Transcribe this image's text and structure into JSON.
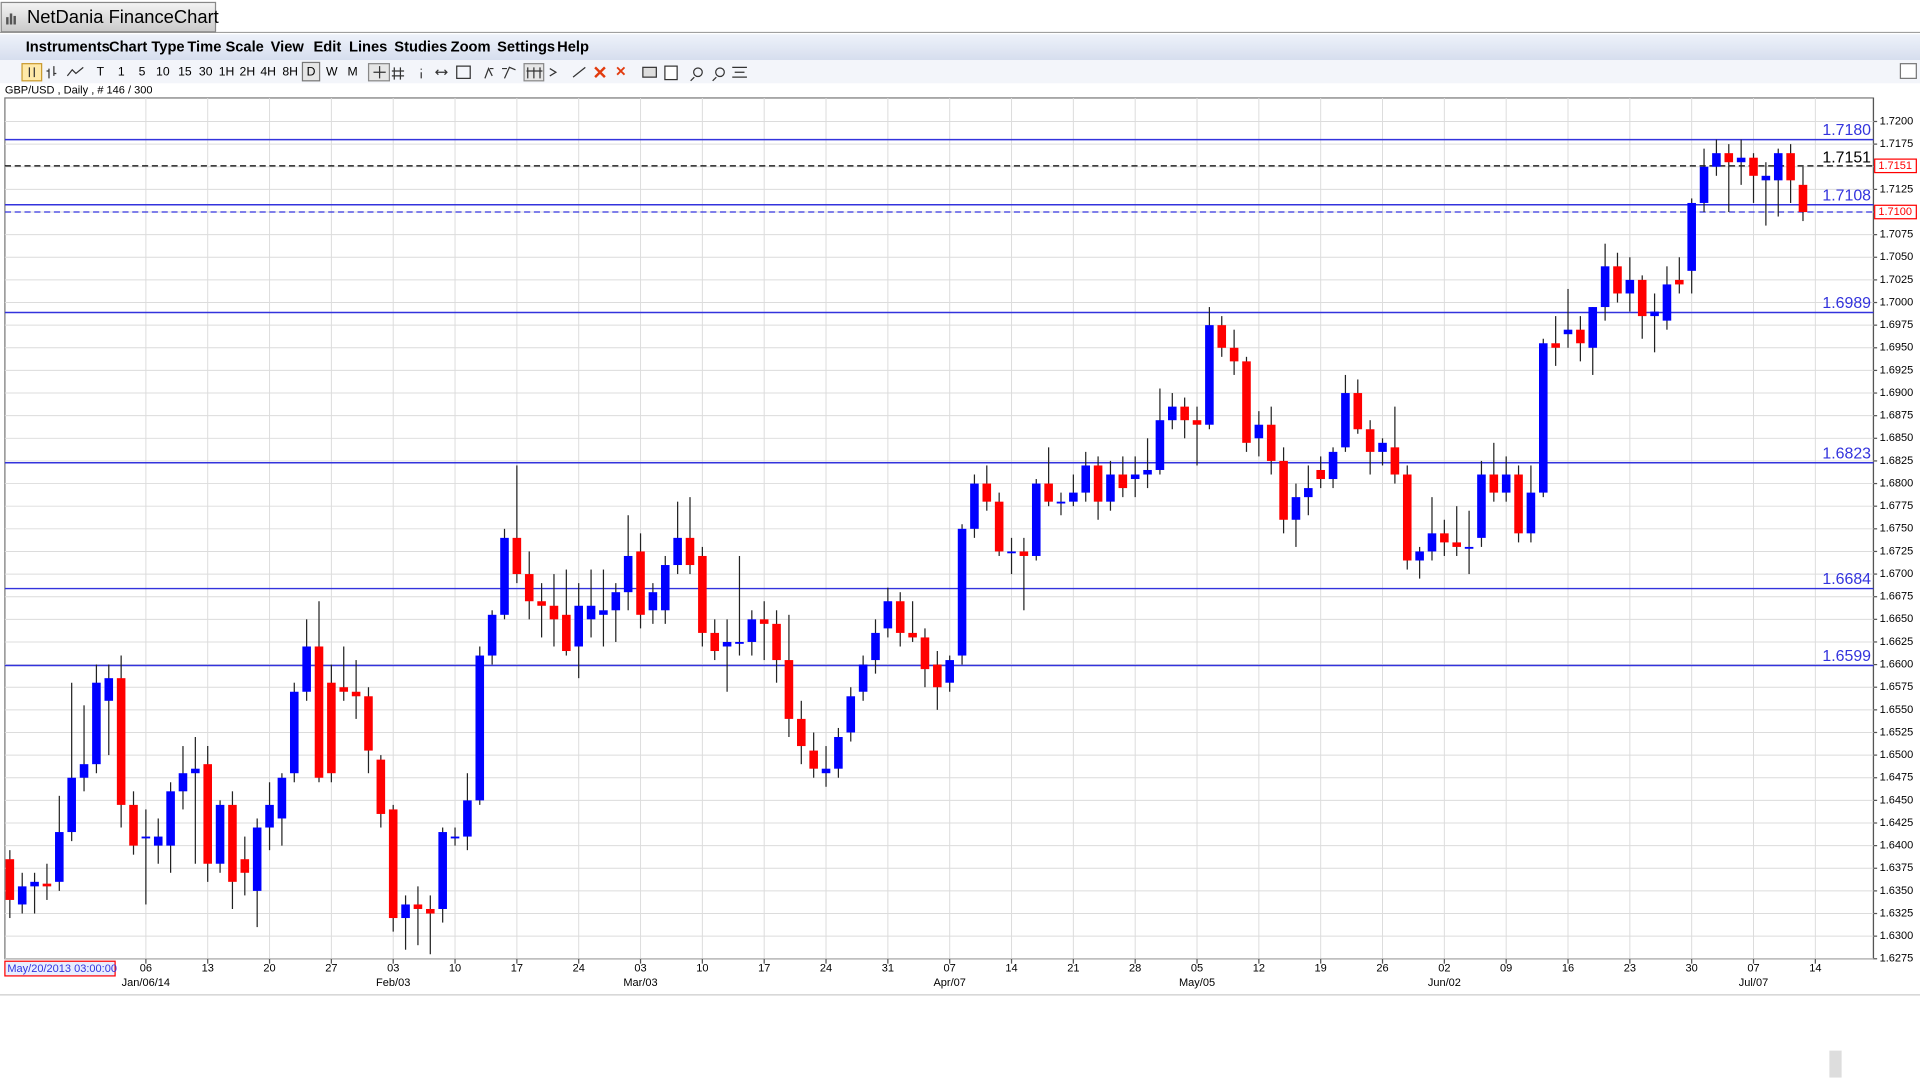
{
  "window": {
    "title": "NetDania FinanceChart",
    "menu": [
      "Instruments",
      "Chart Type",
      "Time Scale",
      "View",
      "Edit",
      "Lines",
      "Studies",
      "Zoom",
      "Settings",
      "Help"
    ],
    "timescales": [
      "T",
      "1",
      "5",
      "10",
      "15",
      "30",
      "1H",
      "2H",
      "4H",
      "8H",
      "D",
      "W",
      "M"
    ]
  },
  "chart_data": {
    "type": "candlestick",
    "title": "GBP/USD , Daily , # 146 / 300",
    "cursor_label": "May/20/2013 03:00:00",
    "up_color": "#0000ff",
    "down_color": "#ff0000",
    "wick_color": "#222222",
    "grid": true,
    "xlim": [
      -0.4,
      150.7
    ],
    "ylim": [
      1.6275,
      1.7226
    ],
    "xticks": [
      {
        "value": 11,
        "label": "06"
      },
      {
        "value": 16,
        "label": "13"
      },
      {
        "value": 21,
        "label": "20"
      },
      {
        "value": 26,
        "label": "27"
      },
      {
        "value": 31,
        "label": "03"
      },
      {
        "value": 36,
        "label": "10"
      },
      {
        "value": 41,
        "label": "17"
      },
      {
        "value": 46,
        "label": "24"
      },
      {
        "value": 51,
        "label": "03"
      },
      {
        "value": 56,
        "label": "10"
      },
      {
        "value": 61,
        "label": "17"
      },
      {
        "value": 66,
        "label": "24"
      },
      {
        "value": 71,
        "label": "31"
      },
      {
        "value": 76,
        "label": "07"
      },
      {
        "value": 81,
        "label": "14"
      },
      {
        "value": 86,
        "label": "21"
      },
      {
        "value": 91,
        "label": "28"
      },
      {
        "value": 96,
        "label": "05"
      },
      {
        "value": 101,
        "label": "12"
      },
      {
        "value": 106,
        "label": "19"
      },
      {
        "value": 111,
        "label": "26"
      },
      {
        "value": 116,
        "label": "02"
      },
      {
        "value": 121,
        "label": "09"
      },
      {
        "value": 126,
        "label": "16"
      },
      {
        "value": 131,
        "label": "23"
      },
      {
        "value": 136,
        "label": "30"
      },
      {
        "value": 141,
        "label": "07"
      },
      {
        "value": 146,
        "label": "14"
      }
    ],
    "month_labels": [
      {
        "value": 11,
        "label": "Jan/06/14"
      },
      {
        "value": 31,
        "label": "Feb/03"
      },
      {
        "value": 51,
        "label": "Mar/03"
      },
      {
        "value": 76,
        "label": "Apr/07"
      },
      {
        "value": 96,
        "label": "May/05"
      },
      {
        "value": 116,
        "label": "Jun/02"
      },
      {
        "value": 141,
        "label": "Jul/07"
      }
    ],
    "yticks": [
      1.6275,
      {
        "value": 1.63,
        "label": "1.6300"
      },
      1.6325,
      {
        "value": 1.635,
        "label": "1.6350"
      },
      1.6375,
      {
        "value": 1.64,
        "label": "1.6400"
      },
      1.6425,
      {
        "value": 1.645,
        "label": "1.6450"
      },
      1.6475,
      {
        "value": 1.65,
        "label": "1.6500"
      },
      1.6525,
      {
        "value": 1.655,
        "label": "1.6550"
      },
      1.6575,
      {
        "value": 1.66,
        "label": "1.6600"
      },
      1.6625,
      {
        "value": 1.665,
        "label": "1.6650"
      },
      1.6675,
      {
        "value": 1.67,
        "label": "1.6700"
      },
      1.6725,
      {
        "value": 1.675,
        "label": "1.6750"
      },
      1.6775,
      {
        "value": 1.68,
        "label": "1.6800"
      },
      1.6825,
      {
        "value": 1.685,
        "label": "1.6850"
      },
      1.6875,
      {
        "value": 1.69,
        "label": "1.6900"
      },
      1.6925,
      {
        "value": 1.695,
        "label": "1.6950"
      },
      1.6975,
      {
        "value": 1.7,
        "label": "1.7000"
      },
      1.7025,
      {
        "value": 1.705,
        "label": "1.7050"
      },
      1.7075,
      {
        "value": 1.71,
        "label": "1.7100"
      },
      1.7125,
      {
        "value": 1.715,
        "label": "1.7150"
      },
      1.7175,
      {
        "value": 1.72,
        "label": "1.7200"
      }
    ],
    "levels": [
      {
        "value": 1.718,
        "label": "1.7180"
      },
      1.7108,
      1.6989,
      1.6823,
      1.6684,
      1.6599
    ],
    "level_color": "#3333dd",
    "last_price": 1.7151,
    "last_price_color": "#000000",
    "bid_line": {
      "value": 1.71,
      "label": "1.7100"
    },
    "bid_line_color": "#3333dd",
    "marker_color": "#ff0000",
    "ohlc": [
      [
        1.6385,
        1.6395,
        1.632,
        1.634
      ],
      [
        1.6335,
        1.637,
        1.6325,
        1.6355
      ],
      [
        1.6355,
        1.637,
        1.6325,
        1.636
      ],
      [
        1.6358,
        1.638,
        1.634,
        1.6355
      ],
      [
        1.636,
        1.6455,
        1.635,
        1.6415
      ],
      [
        1.6415,
        1.658,
        1.6405,
        1.6475
      ],
      [
        1.6475,
        1.6555,
        1.646,
        1.649
      ],
      [
        1.649,
        1.66,
        1.648,
        1.658
      ],
      [
        1.656,
        1.66,
        1.65,
        1.6585
      ],
      [
        1.6585,
        1.661,
        1.642,
        1.6445
      ],
      [
        1.6445,
        1.646,
        1.639,
        1.64
      ],
      [
        1.641,
        1.644,
        1.6335,
        1.641
      ],
      [
        1.64,
        1.643,
        1.638,
        1.641
      ],
      [
        1.64,
        1.647,
        1.637,
        1.646
      ],
      [
        1.646,
        1.651,
        1.644,
        1.648
      ],
      [
        1.648,
        1.652,
        1.638,
        1.6485
      ],
      [
        1.649,
        1.651,
        1.636,
        1.638
      ],
      [
        1.638,
        1.645,
        1.637,
        1.6445
      ],
      [
        1.6445,
        1.646,
        1.633,
        1.636
      ],
      [
        1.6385,
        1.641,
        1.6345,
        1.637
      ],
      [
        1.635,
        1.643,
        1.631,
        1.642
      ],
      [
        1.642,
        1.647,
        1.6395,
        1.6445
      ],
      [
        1.643,
        1.648,
        1.64,
        1.6475
      ],
      [
        1.648,
        1.658,
        1.647,
        1.657
      ],
      [
        1.657,
        1.665,
        1.656,
        1.662
      ],
      [
        1.662,
        1.667,
        1.647,
        1.6475
      ],
      [
        1.658,
        1.66,
        1.647,
        1.648
      ],
      [
        1.6575,
        1.662,
        1.656,
        1.657
      ],
      [
        1.657,
        1.6605,
        1.654,
        1.6565
      ],
      [
        1.6565,
        1.6575,
        1.648,
        1.6505
      ],
      [
        1.6495,
        1.65,
        1.642,
        1.6435
      ],
      [
        1.644,
        1.6445,
        1.6305,
        1.632
      ],
      [
        1.632,
        1.6345,
        1.6285,
        1.6335
      ],
      [
        1.6335,
        1.6355,
        1.629,
        1.633
      ],
      [
        1.633,
        1.6345,
        1.628,
        1.6325
      ],
      [
        1.633,
        1.642,
        1.6315,
        1.6415
      ],
      [
        1.641,
        1.642,
        1.64,
        1.641
      ],
      [
        1.641,
        1.648,
        1.6395,
        1.645
      ],
      [
        1.645,
        1.662,
        1.6445,
        1.661
      ],
      [
        1.661,
        1.666,
        1.66,
        1.6655
      ],
      [
        1.6655,
        1.675,
        1.665,
        1.674
      ],
      [
        1.674,
        1.682,
        1.669,
        1.67
      ],
      [
        1.67,
        1.6725,
        1.665,
        1.667
      ],
      [
        1.667,
        1.669,
        1.663,
        1.6665
      ],
      [
        1.6665,
        1.67,
        1.662,
        1.665
      ],
      [
        1.6655,
        1.6705,
        1.661,
        1.6615
      ],
      [
        1.662,
        1.669,
        1.6585,
        1.6665
      ],
      [
        1.665,
        1.6705,
        1.663,
        1.6665
      ],
      [
        1.6655,
        1.6705,
        1.662,
        1.666
      ],
      [
        1.666,
        1.669,
        1.6625,
        1.668
      ],
      [
        1.668,
        1.6765,
        1.666,
        1.672
      ],
      [
        1.6725,
        1.6745,
        1.664,
        1.6655
      ],
      [
        1.666,
        1.669,
        1.6645,
        1.668
      ],
      [
        1.666,
        1.672,
        1.6645,
        1.671
      ],
      [
        1.671,
        1.678,
        1.67,
        1.674
      ],
      [
        1.674,
        1.6785,
        1.67,
        1.671
      ],
      [
        1.672,
        1.673,
        1.662,
        1.6635
      ],
      [
        1.6635,
        1.665,
        1.6605,
        1.6615
      ],
      [
        1.662,
        1.665,
        1.657,
        1.6625
      ],
      [
        1.6625,
        1.672,
        1.661,
        1.6625
      ],
      [
        1.6625,
        1.666,
        1.661,
        1.665
      ],
      [
        1.665,
        1.667,
        1.6605,
        1.6645
      ],
      [
        1.6645,
        1.666,
        1.658,
        1.6605
      ],
      [
        1.6605,
        1.6655,
        1.652,
        1.654
      ],
      [
        1.654,
        1.656,
        1.649,
        1.651
      ],
      [
        1.6505,
        1.6525,
        1.6475,
        1.6485
      ],
      [
        1.648,
        1.651,
        1.6465,
        1.6485
      ],
      [
        1.6485,
        1.653,
        1.6475,
        1.652
      ],
      [
        1.6525,
        1.6575,
        1.6515,
        1.6565
      ],
      [
        1.657,
        1.661,
        1.656,
        1.66
      ],
      [
        1.6605,
        1.665,
        1.659,
        1.6635
      ],
      [
        1.664,
        1.6685,
        1.663,
        1.667
      ],
      [
        1.667,
        1.668,
        1.662,
        1.6635
      ],
      [
        1.6635,
        1.667,
        1.6625,
        1.663
      ],
      [
        1.663,
        1.664,
        1.6575,
        1.6595
      ],
      [
        1.66,
        1.6615,
        1.655,
        1.6575
      ],
      [
        1.658,
        1.661,
        1.657,
        1.6605
      ],
      [
        1.661,
        1.6755,
        1.66,
        1.675
      ],
      [
        1.675,
        1.681,
        1.674,
        1.68
      ],
      [
        1.68,
        1.682,
        1.677,
        1.678
      ],
      [
        1.678,
        1.679,
        1.672,
        1.6725
      ],
      [
        1.6725,
        1.674,
        1.67,
        1.6725
      ],
      [
        1.6725,
        1.674,
        1.666,
        1.672
      ],
      [
        1.672,
        1.6805,
        1.6715,
        1.68
      ],
      [
        1.68,
        1.684,
        1.6775,
        1.678
      ],
      [
        1.678,
        1.679,
        1.6765,
        1.678
      ],
      [
        1.678,
        1.681,
        1.6775,
        1.679
      ],
      [
        1.679,
        1.6835,
        1.678,
        1.682
      ],
      [
        1.682,
        1.683,
        1.676,
        1.678
      ],
      [
        1.678,
        1.6825,
        1.677,
        1.681
      ],
      [
        1.681,
        1.683,
        1.6785,
        1.6795
      ],
      [
        1.6805,
        1.683,
        1.6785,
        1.681
      ],
      [
        1.681,
        1.685,
        1.6795,
        1.6815
      ],
      [
        1.6815,
        1.6905,
        1.681,
        1.687
      ],
      [
        1.687,
        1.69,
        1.686,
        1.6885
      ],
      [
        1.6885,
        1.6895,
        1.685,
        1.687
      ],
      [
        1.687,
        1.6885,
        1.682,
        1.6865
      ],
      [
        1.6865,
        1.6995,
        1.686,
        1.6975
      ],
      [
        1.6975,
        1.6985,
        1.694,
        1.695
      ],
      [
        1.695,
        1.697,
        1.692,
        1.6935
      ],
      [
        1.6935,
        1.694,
        1.6835,
        1.6845
      ],
      [
        1.685,
        1.688,
        1.683,
        1.6865
      ],
      [
        1.6865,
        1.6885,
        1.681,
        1.6825
      ],
      [
        1.6825,
        1.684,
        1.6745,
        1.676
      ],
      [
        1.676,
        1.68,
        1.673,
        1.6785
      ],
      [
        1.6785,
        1.682,
        1.6765,
        1.6795
      ],
      [
        1.6815,
        1.683,
        1.6795,
        1.6805
      ],
      [
        1.6805,
        1.684,
        1.6795,
        1.6835
      ],
      [
        1.684,
        1.692,
        1.6835,
        1.69
      ],
      [
        1.69,
        1.6915,
        1.6855,
        1.686
      ],
      [
        1.686,
        1.687,
        1.681,
        1.6835
      ],
      [
        1.6835,
        1.685,
        1.682,
        1.6845
      ],
      [
        1.684,
        1.6885,
        1.68,
        1.681
      ],
      [
        1.681,
        1.682,
        1.6705,
        1.6715
      ],
      [
        1.6715,
        1.673,
        1.6695,
        1.6725
      ],
      [
        1.6725,
        1.6785,
        1.6715,
        1.6745
      ],
      [
        1.6745,
        1.676,
        1.672,
        1.6735
      ],
      [
        1.6735,
        1.6775,
        1.672,
        1.673
      ],
      [
        1.673,
        1.677,
        1.67,
        1.673
      ],
      [
        1.674,
        1.6825,
        1.673,
        1.681
      ],
      [
        1.681,
        1.6845,
        1.678,
        1.679
      ],
      [
        1.679,
        1.683,
        1.678,
        1.681
      ],
      [
        1.681,
        1.682,
        1.6735,
        1.6745
      ],
      [
        1.6745,
        1.682,
        1.6735,
        1.679
      ],
      [
        1.679,
        1.696,
        1.6785,
        1.6955
      ],
      [
        1.6955,
        1.6985,
        1.693,
        1.695
      ],
      [
        1.6965,
        1.7015,
        1.695,
        1.697
      ],
      [
        1.697,
        1.6985,
        1.6935,
        1.6955
      ],
      [
        1.695,
        1.6995,
        1.692,
        1.6995
      ],
      [
        1.6995,
        1.7065,
        1.698,
        1.704
      ],
      [
        1.704,
        1.7055,
        1.7,
        1.701
      ],
      [
        1.701,
        1.705,
        1.699,
        1.7025
      ],
      [
        1.7025,
        1.703,
        1.696,
        1.6985
      ],
      [
        1.6985,
        1.701,
        1.6945,
        1.699
      ],
      [
        1.698,
        1.704,
        1.697,
        1.702
      ],
      [
        1.7025,
        1.705,
        1.701,
        1.702
      ],
      [
        1.7035,
        1.7115,
        1.701,
        1.711
      ],
      [
        1.711,
        1.717,
        1.71,
        1.715
      ],
      [
        1.715,
        1.718,
        1.714,
        1.7165
      ],
      [
        1.7165,
        1.7175,
        1.71,
        1.7155
      ],
      [
        1.7155,
        1.718,
        1.713,
        1.716
      ],
      [
        1.716,
        1.7165,
        1.711,
        1.714
      ],
      [
        1.7135,
        1.7155,
        1.7085,
        1.714
      ],
      [
        1.7135,
        1.717,
        1.7095,
        1.7165
      ],
      [
        1.7165,
        1.7175,
        1.711,
        1.7135
      ],
      [
        1.713,
        1.715,
        1.709,
        1.71
      ]
    ]
  }
}
